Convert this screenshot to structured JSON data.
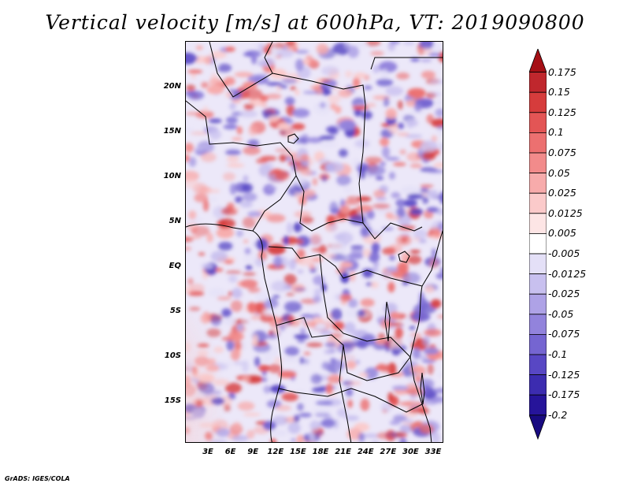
{
  "title": "Vertical velocity [m/s] at 600hPa, VT: 2019090800",
  "footer": "GrADS: IGES/COLA",
  "map": {
    "lat_labels": [
      "20N",
      "15N",
      "10N",
      "5N",
      "EQ",
      "5S",
      "10S",
      "15S"
    ],
    "lon_labels": [
      "3E",
      "6E",
      "9E",
      "12E",
      "15E",
      "18E",
      "21E",
      "24E",
      "27E",
      "30E",
      "33E"
    ]
  },
  "colorbar": {
    "levels": [
      "0.175",
      "0.15",
      "0.125",
      "0.1",
      "0.075",
      "0.05",
      "0.025",
      "0.0125",
      "0.005",
      "-0.005",
      "-0.0125",
      "-0.025",
      "-0.05",
      "-0.075",
      "-0.1",
      "-0.125",
      "-0.175",
      "-0.2"
    ],
    "colors": [
      "#a50f15",
      "#c0272d",
      "#d63c3c",
      "#e35555",
      "#ec7070",
      "#f28b8b",
      "#f7abab",
      "#fbcaca",
      "#fde5e5",
      "#ffffff",
      "#e4e0f7",
      "#c8c0ef",
      "#aea2e6",
      "#9283dc",
      "#7565d1",
      "#5847c4",
      "#3c2cb0",
      "#26149a",
      "#180a80"
    ]
  }
}
